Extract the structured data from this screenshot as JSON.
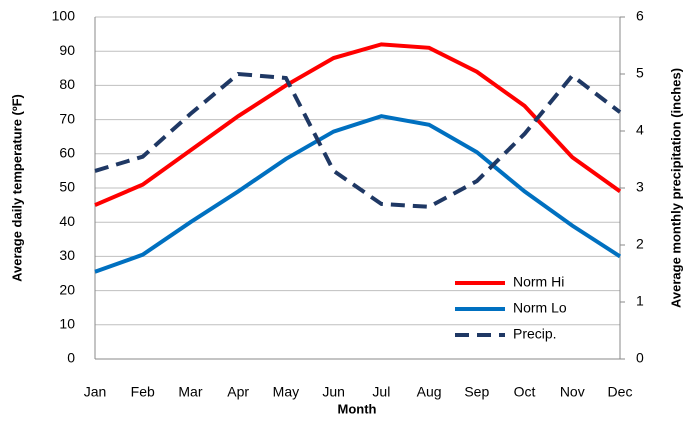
{
  "chart_data": {
    "type": "line",
    "x_label": "Month",
    "y_label": "Average daily temperature (ºF)",
    "y2_label": "Average monthly precipitation (inches)",
    "categories": [
      "Jan",
      "Feb",
      "Mar",
      "Apr",
      "May",
      "Jun",
      "Jul",
      "Aug",
      "Sep",
      "Oct",
      "Nov",
      "Dec"
    ],
    "series": [
      {
        "name": "Norm Hi",
        "color": "#ff0000",
        "dash": false,
        "values": [
          45,
          51,
          61,
          71,
          80,
          88,
          92,
          91,
          84,
          74,
          59,
          49
        ]
      },
      {
        "name": "Norm Lo",
        "color": "#0070c0",
        "dash": false,
        "values": [
          25.5,
          30.5,
          40,
          49,
          58.5,
          66.5,
          71,
          68.5,
          60.5,
          49,
          39,
          30
        ]
      },
      {
        "name": "Precip.",
        "color": "#1f3864",
        "dash": true,
        "axis": "y2",
        "values": [
          3.3,
          3.55,
          4.3,
          5.0,
          4.93,
          3.3,
          2.72,
          2.67,
          3.12,
          3.95,
          4.97,
          4.33
        ]
      }
    ],
    "ylim": [
      0,
      100
    ],
    "yticks": [
      0,
      10,
      20,
      30,
      40,
      50,
      60,
      70,
      80,
      90,
      100
    ],
    "y2lim": [
      0,
      6
    ],
    "y2ticks": [
      0,
      1,
      2,
      3,
      4,
      5,
      6
    ],
    "grid": true,
    "legend": "lower-right"
  }
}
